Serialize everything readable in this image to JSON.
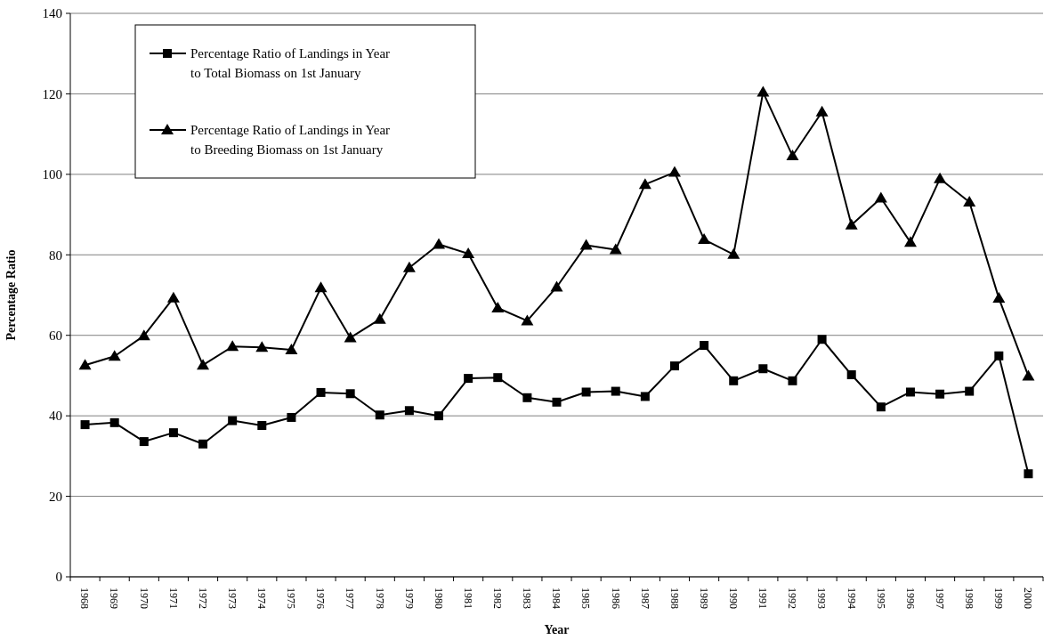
{
  "chart_data": {
    "type": "line",
    "xlabel": "Year",
    "ylabel": "Percentage Ratio",
    "categories": [
      "1968",
      "1969",
      "1970",
      "1971",
      "1972",
      "1973",
      "1974",
      "1975",
      "1976",
      "1977",
      "1978",
      "1979",
      "1980",
      "1981",
      "1982",
      "1983",
      "1984",
      "1985",
      "1986",
      "1987",
      "1988",
      "1989",
      "1990",
      "1991",
      "1992",
      "1993",
      "1994",
      "1995",
      "1996",
      "1997",
      "1998",
      "1999",
      "2000"
    ],
    "series": [
      {
        "name": "Percentage Ratio of Landings in Year to Total Biomass on 1st January",
        "color": "#000000",
        "marker": "square",
        "values": [
          37.8,
          38.3,
          33.6,
          35.8,
          33.0,
          38.8,
          37.6,
          39.6,
          45.8,
          45.5,
          40.2,
          41.3,
          40.0,
          49.3,
          49.5,
          44.5,
          43.4,
          45.9,
          46.1,
          44.8,
          52.4,
          57.5,
          48.7,
          51.7,
          48.7,
          59.0,
          50.2,
          42.2,
          45.9,
          45.4,
          46.1,
          54.9,
          25.6
        ]
      },
      {
        "name": "Percentage Ratio of Landings in Year to Breeding Biomass on 1st January",
        "color": "#000000",
        "marker": "triangle",
        "values": [
          52.6,
          54.8,
          59.9,
          69.3,
          52.6,
          57.2,
          57.0,
          56.4,
          71.8,
          59.4,
          64.0,
          76.8,
          82.6,
          80.3,
          66.8,
          63.6,
          72.0,
          82.4,
          81.3,
          97.5,
          100.5,
          83.8,
          80.1,
          120.4,
          104.6,
          115.5,
          87.4,
          94.1,
          83.1,
          98.9,
          93.1,
          69.2,
          49.9
        ]
      }
    ],
    "ylim": [
      0,
      140
    ],
    "yticks": [
      0,
      20,
      40,
      60,
      80,
      100,
      120,
      140
    ],
    "grid": "y",
    "legend": "top left"
  }
}
